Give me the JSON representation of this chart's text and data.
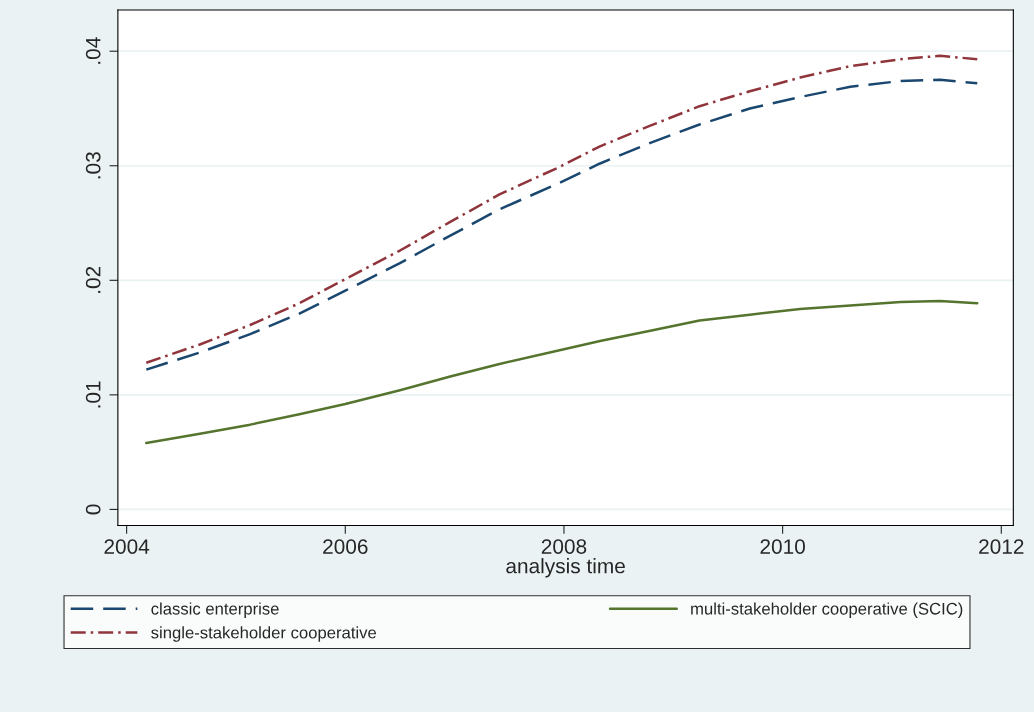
{
  "chart_data": {
    "type": "line",
    "xlabel": "analysis time",
    "x": [
      2004.18,
      2004.67,
      2005.13,
      2005.58,
      2006.0,
      2006.5,
      2006.96,
      2007.41,
      2007.96,
      2008.33,
      2008.79,
      2009.24,
      2009.7,
      2010.16,
      2010.62,
      2011.08,
      2011.44,
      2011.78
    ],
    "series": [
      {
        "name": "classic enterprise",
        "color": "#1a476f",
        "line_style": "dashed",
        "values": [
          0.0122,
          0.0137,
          0.0153,
          0.0171,
          0.0191,
          0.0215,
          0.0239,
          0.0262,
          0.0285,
          0.0302,
          0.032,
          0.0336,
          0.035,
          0.036,
          0.0369,
          0.0374,
          0.0375,
          0.0372
        ]
      },
      {
        "name": "single-stakeholder cooperative",
        "color": "#90353b",
        "line_style": "dashdot",
        "values": [
          0.0128,
          0.0144,
          0.0161,
          0.018,
          0.0201,
          0.0226,
          0.0251,
          0.0275,
          0.0299,
          0.0317,
          0.0335,
          0.0352,
          0.0365,
          0.0377,
          0.0387,
          0.0393,
          0.0396,
          0.0393
        ]
      },
      {
        "name": "multi-stakeholder cooperative (SCIC)",
        "color": "#55752f",
        "line_style": "solid",
        "values": [
          0.0058,
          0.0066,
          0.0074,
          0.0083,
          0.0092,
          0.0104,
          0.0116,
          0.0127,
          0.0139,
          0.0147,
          0.0156,
          0.0165,
          0.017,
          0.0175,
          0.0178,
          0.0181,
          0.0182,
          0.018
        ]
      }
    ],
    "xlim": [
      2003.92,
      2012.11
    ],
    "xticks": [
      2004,
      2006,
      2008,
      2010,
      2012
    ],
    "ylim": [
      -0.0014,
      0.0436
    ],
    "yticks": [
      {
        "value": 0,
        "label": "0"
      },
      {
        "value": 0.01,
        "label": ".01"
      },
      {
        "value": 0.02,
        "label": ".02"
      },
      {
        "value": 0.03,
        "label": ".03"
      },
      {
        "value": 0.04,
        "label": ".04"
      }
    ],
    "grid": "y",
    "legend": "bottom",
    "marker": "none"
  }
}
